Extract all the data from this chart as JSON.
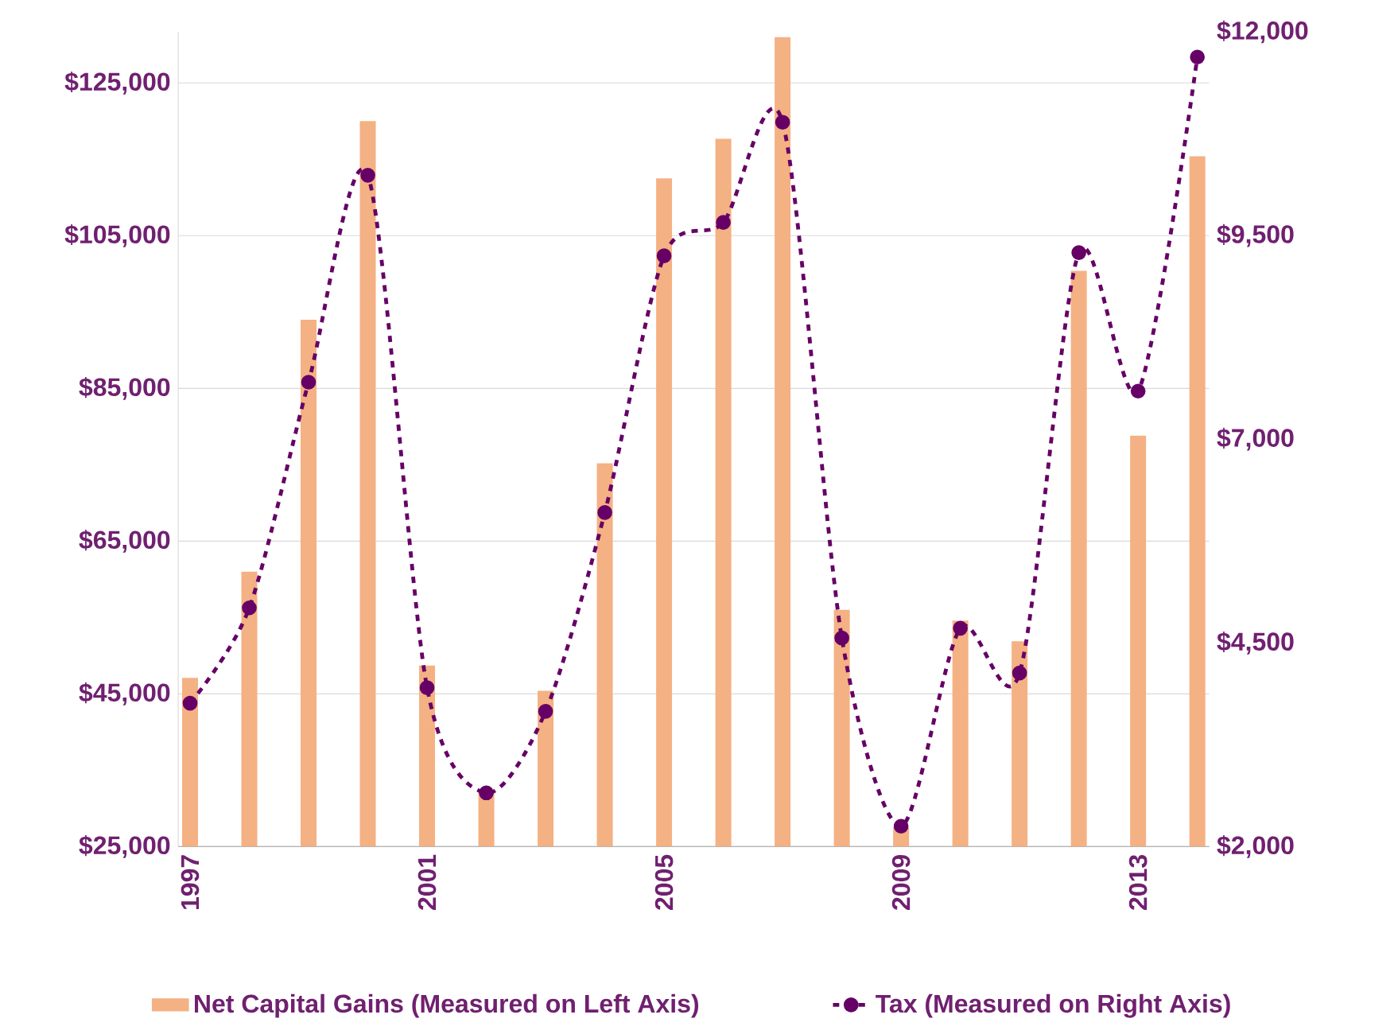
{
  "chart_data": {
    "type": "bar",
    "x": [
      1997,
      1998,
      1999,
      2000,
      2001,
      2002,
      2003,
      2004,
      2005,
      2006,
      2007,
      2008,
      2009,
      2010,
      2011,
      2012,
      2013,
      2014
    ],
    "series": [
      {
        "name": "Net Capital Gains (Measured on Left Axis)",
        "color": "#f4b183",
        "values": [
          47100,
          61000,
          94000,
          120000,
          48700,
          32300,
          45400,
          75200,
          112500,
          117700,
          131000,
          56000,
          27500,
          54600,
          51900,
          100400,
          78800,
          115400
        ]
      },
      {
        "name": "Tax (Measured on Right Axis)",
        "type": "line",
        "axis": "y2",
        "color": "#660066",
        "marker": "circle",
        "line_style": "dashed",
        "values": [
          3760,
          4930,
          7700,
          10240,
          3950,
          2660,
          3660,
          6100,
          9250,
          9660,
          10890,
          4560,
          2250,
          4680,
          4130,
          9290,
          7590,
          11690
        ]
      }
    ],
    "xlim": [
      1996.8,
      2014.2
    ],
    "xticks": [
      1997,
      2001,
      2005,
      2009,
      2013
    ],
    "ylim": [
      25000,
      131700
    ],
    "yticks": [
      {
        "value": 25000,
        "label": "$25,000"
      },
      {
        "value": 45000,
        "label": "$45,000"
      },
      {
        "value": 65000,
        "label": "$65,000"
      },
      {
        "value": 85000,
        "label": "$85,000"
      },
      {
        "value": 105000,
        "label": "$105,000"
      },
      {
        "value": 125000,
        "label": "$125,000"
      }
    ],
    "y2lim": [
      2000,
      12000
    ],
    "y2ticks": [
      {
        "value": 2000,
        "label": "$2,000"
      },
      {
        "value": 4500,
        "label": "$4,500"
      },
      {
        "value": 7000,
        "label": "$7,000"
      },
      {
        "value": 9500,
        "label": "$9,500"
      },
      {
        "value": 12000,
        "label": "$12,000"
      }
    ],
    "grid": "y",
    "legend": "bottom"
  }
}
